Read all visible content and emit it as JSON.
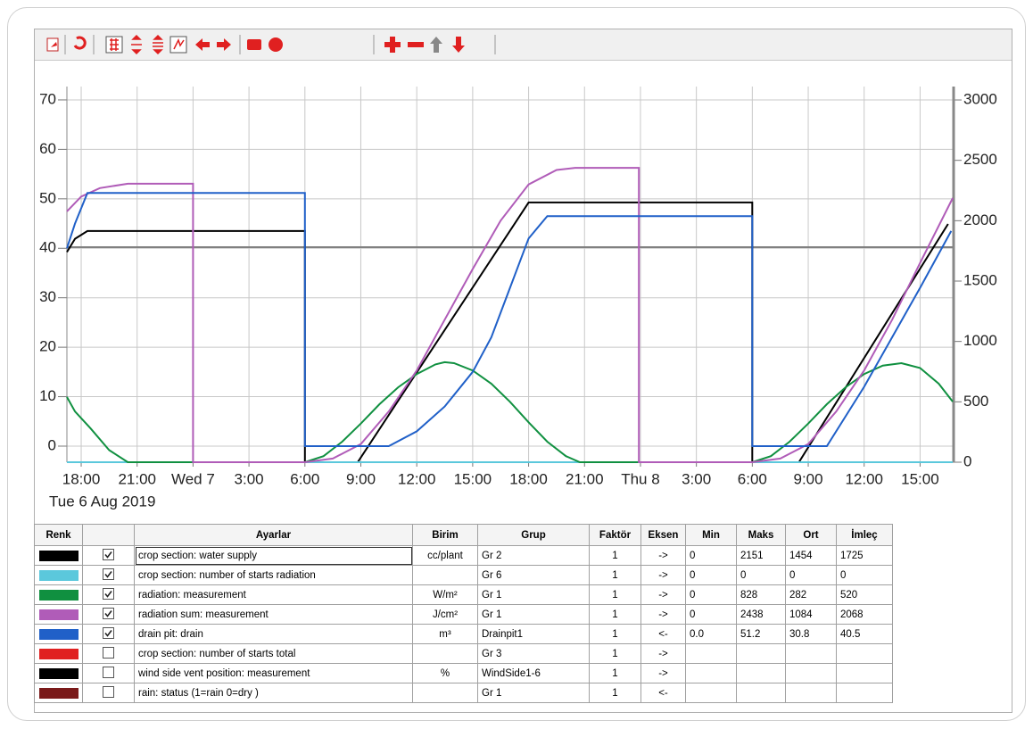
{
  "chart_data": {
    "type": "line",
    "date_label": "Tue 6 Aug 2019",
    "xlim": [
      "2019-08-06T17:14",
      "2019-08-08T16:45"
    ],
    "xticks": [
      {
        "value": "2019-08-06T18:00",
        "label": "18:00"
      },
      {
        "value": "2019-08-06T21:00",
        "label": "21:00"
      },
      {
        "value": "2019-08-07T00:00",
        "label": "Wed 7"
      },
      {
        "value": "2019-08-07T03:00",
        "label": "3:00"
      },
      {
        "value": "2019-08-07T06:00",
        "label": "6:00"
      },
      {
        "value": "2019-08-07T09:00",
        "label": "9:00"
      },
      {
        "value": "2019-08-07T12:00",
        "label": "12:00"
      },
      {
        "value": "2019-08-07T15:00",
        "label": "15:00"
      },
      {
        "value": "2019-08-07T18:00",
        "label": "18:00"
      },
      {
        "value": "2019-08-07T21:00",
        "label": "21:00"
      },
      {
        "value": "2019-08-08T00:00",
        "label": "Thu 8"
      },
      {
        "value": "2019-08-08T03:00",
        "label": "3:00"
      },
      {
        "value": "2019-08-08T06:00",
        "label": "6:00"
      },
      {
        "value": "2019-08-08T09:00",
        "label": "9:00"
      },
      {
        "value": "2019-08-08T12:00",
        "label": "12:00"
      },
      {
        "value": "2019-08-08T15:00",
        "label": "15:00"
      }
    ],
    "ylim": [
      -3.25,
      72.7
    ],
    "yticks": [
      0,
      10,
      20,
      30,
      40,
      50,
      60,
      70
    ],
    "y2lim": [
      0,
      3111
    ],
    "y2ticks": [
      0,
      500,
      1000,
      1500,
      2000,
      2500,
      3000
    ],
    "grid": true,
    "series": [
      {
        "color": "#000000",
        "axis": "y2",
        "x": [
          "2019-08-06T17:14",
          "2019-08-06T17:40",
          "2019-08-06T18:20",
          "2019-08-07T06:00",
          "2019-08-07T06:00",
          "2019-08-07T08:50",
          "2019-08-07T18:00",
          "2019-08-08T06:00",
          "2019-08-08T06:00",
          "2019-08-08T08:30",
          "2019-08-08T16:30"
        ],
        "values": [
          1740,
          1850,
          1915,
          1915,
          0,
          0,
          2151,
          2151,
          0,
          0,
          1973
        ]
      },
      {
        "color": "#5bc8dc",
        "axis": "y2",
        "x": [
          "2019-08-06T17:14",
          "2019-08-08T16:45"
        ],
        "values": [
          0,
          0
        ]
      },
      {
        "color": "#109040",
        "axis": "y2",
        "x": [
          "2019-08-06T17:14",
          "2019-08-06T17:40",
          "2019-08-06T18:30",
          "2019-08-06T19:30",
          "2019-08-06T20:30",
          "2019-08-07T06:00",
          "2019-08-07T07:00",
          "2019-08-07T08:00",
          "2019-08-07T09:00",
          "2019-08-07T10:00",
          "2019-08-07T11:00",
          "2019-08-07T12:00",
          "2019-08-07T13:00",
          "2019-08-07T13:30",
          "2019-08-07T14:00",
          "2019-08-07T15:00",
          "2019-08-07T16:00",
          "2019-08-07T17:00",
          "2019-08-07T18:00",
          "2019-08-07T19:00",
          "2019-08-07T20:00",
          "2019-08-07T20:45",
          "2019-08-08T06:00",
          "2019-08-08T07:00",
          "2019-08-08T08:00",
          "2019-08-08T09:00",
          "2019-08-08T10:00",
          "2019-08-08T11:00",
          "2019-08-08T12:00",
          "2019-08-08T13:00",
          "2019-08-08T14:00",
          "2019-08-08T15:00",
          "2019-08-08T16:00",
          "2019-08-08T16:45"
        ],
        "values": [
          540,
          420,
          280,
          100,
          0,
          0,
          50,
          170,
          320,
          480,
          620,
          730,
          810,
          828,
          820,
          760,
          650,
          500,
          330,
          170,
          50,
          0,
          0,
          50,
          170,
          320,
          480,
          620,
          730,
          800,
          820,
          780,
          650,
          502
        ]
      },
      {
        "color": "#b05cb8",
        "axis": "y2",
        "x": [
          "2019-08-06T17:14",
          "2019-08-06T18:00",
          "2019-08-06T19:00",
          "2019-08-06T20:30",
          "2019-08-07T00:00",
          "2019-08-07T00:00",
          "2019-08-07T06:00",
          "2019-08-07T07:30",
          "2019-08-07T09:00",
          "2019-08-07T10:30",
          "2019-08-07T12:00",
          "2019-08-07T13:30",
          "2019-08-07T15:00",
          "2019-08-07T16:30",
          "2019-08-07T18:00",
          "2019-08-07T19:30",
          "2019-08-07T20:30",
          "2019-08-07T23:55",
          "2019-08-07T23:55",
          "2019-08-08T06:00",
          "2019-08-08T07:30",
          "2019-08-08T09:00",
          "2019-08-08T10:30",
          "2019-08-08T12:00",
          "2019-08-08T13:30",
          "2019-08-08T15:00",
          "2019-08-08T16:45"
        ],
        "values": [
          2077,
          2200,
          2270,
          2306,
          2306,
          0,
          0,
          30,
          150,
          420,
          760,
          1180,
          1600,
          2000,
          2300,
          2420,
          2438,
          2438,
          0,
          0,
          30,
          150,
          420,
          760,
          1180,
          1650,
          2187
        ]
      },
      {
        "color": "#2060c8",
        "axis": "y",
        "x": [
          "2019-08-06T17:14",
          "2019-08-06T17:40",
          "2019-08-06T18:20",
          "2019-08-07T06:00",
          "2019-08-07T06:00",
          "2019-08-07T10:30",
          "2019-08-07T12:00",
          "2019-08-07T13:30",
          "2019-08-07T15:00",
          "2019-08-07T16:00",
          "2019-08-07T17:00",
          "2019-08-07T18:00",
          "2019-08-07T19:00",
          "2019-08-08T06:00",
          "2019-08-08T06:00",
          "2019-08-08T10:00",
          "2019-08-08T12:00",
          "2019-08-08T15:00",
          "2019-08-08T16:40"
        ],
        "values": [
          40,
          45,
          51.2,
          51.2,
          0,
          0,
          3,
          8,
          15,
          22,
          32,
          42,
          46.5,
          46.5,
          0,
          0,
          12,
          32,
          43.5
        ]
      }
    ]
  },
  "table": {
    "columns": [
      "Renk",
      "Ayarlar",
      "Birim",
      "Grup",
      "Faktör",
      "Eksen",
      "Min",
      "Maks",
      "Ort",
      "İmleç"
    ],
    "rows": [
      {
        "color": "#000000",
        "checked": true,
        "cells": [
          "crop section: water supply",
          "cc/plant",
          "Gr 2",
          "1",
          "->",
          "0",
          "2151",
          "1454",
          "1725"
        ]
      },
      {
        "color": "#5bc8dc",
        "checked": true,
        "cells": [
          "crop section: number of starts radiation",
          null,
          "Gr 6",
          "1",
          "->",
          "0",
          "0",
          "0",
          "0"
        ]
      },
      {
        "color": "#109040",
        "checked": true,
        "cells": [
          "radiation: measurement",
          "W/m²",
          "Gr 1",
          "1",
          "->",
          "0",
          "828",
          "282",
          "520"
        ]
      },
      {
        "color": "#b05cb8",
        "checked": true,
        "cells": [
          "radiation sum: measurement",
          "J/cm²",
          "Gr 1",
          "1",
          "->",
          "0",
          "2438",
          "1084",
          "2068"
        ]
      },
      {
        "color": "#2060c8",
        "checked": true,
        "cells": [
          "drain pit: drain",
          "m³",
          "Drainpit1",
          "1",
          "<-",
          "0.0",
          "51.2",
          "30.8",
          "40.5"
        ]
      },
      {
        "color": "#e02020",
        "checked": false,
        "cells": [
          "crop section: number of starts total",
          null,
          "Gr 3",
          "1",
          "->",
          null,
          null,
          null,
          null
        ]
      },
      {
        "color": "#000000",
        "checked": false,
        "cells": [
          "wind side vent position: measurement",
          "%",
          "WindSide1-6",
          "1",
          "->",
          null,
          null,
          null,
          null
        ]
      },
      {
        "color": "#7a1a1a",
        "checked": false,
        "cells": [
          "rain: status (1=rain 0=dry )",
          null,
          "Gr 1",
          "1",
          "<-",
          null,
          null,
          null,
          null
        ]
      }
    ]
  }
}
